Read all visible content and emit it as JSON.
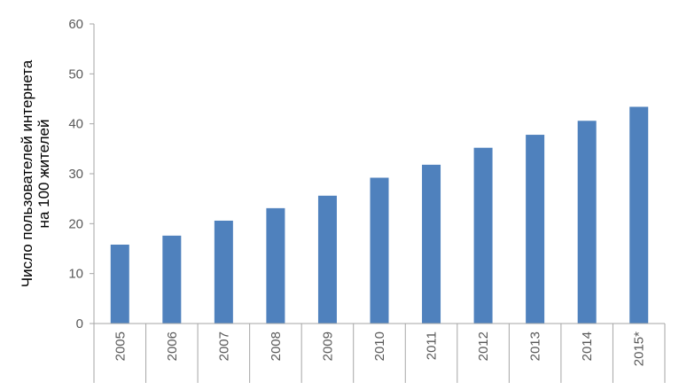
{
  "chart_data": {
    "type": "bar",
    "categories": [
      "2005",
      "2006",
      "2007",
      "2008",
      "2009",
      "2010",
      "2011",
      "2012",
      "2013",
      "2014",
      "2015*"
    ],
    "values": [
      15.8,
      17.6,
      20.6,
      23.1,
      25.6,
      29.2,
      31.8,
      35.2,
      37.8,
      40.6,
      43.4
    ],
    "title": "",
    "xlabel": "",
    "ylabel": [
      "Число пользователей интернета",
      "на 100 жителей"
    ],
    "ylim": [
      0,
      60
    ],
    "yticks": [
      "0",
      "10",
      "20",
      "30",
      "40",
      "50",
      "60"
    ],
    "grid": false,
    "legend": "none",
    "colors": {
      "bar": "#4f81bd",
      "axis": "#a6a6a6",
      "tick_text": "#595959"
    }
  }
}
